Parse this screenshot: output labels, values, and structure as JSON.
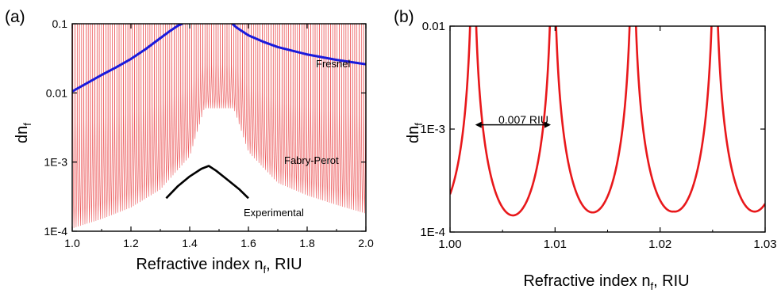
{
  "chart_data": [
    {
      "type": "line",
      "panel_label": "(a)",
      "xlabel": "Refractive index n",
      "xlabel_sub": "f",
      "xlabel_unit": ", RIU",
      "ylabel": "dn",
      "ylabel_sub": "f",
      "xlim": [
        1.0,
        2.0
      ],
      "ylim": [
        0.0001,
        0.1
      ],
      "y_scale": "log",
      "x_ticks": [
        1.0,
        1.2,
        1.4,
        1.6,
        1.8,
        2.0
      ],
      "x_tick_labels": [
        "1.0",
        "1.2",
        "1.4",
        "1.6",
        "1.8",
        "2.0"
      ],
      "y_ticks": [
        0.0001,
        0.001,
        0.01,
        0.1
      ],
      "y_tick_labels": [
        "1E-4",
        "1E-3",
        "0.01",
        "0.1"
      ],
      "series": [
        {
          "name": "Fresnel",
          "color": "#1a1adc",
          "x": [
            1.0,
            1.05,
            1.1,
            1.15,
            1.2,
            1.25,
            1.3,
            1.33,
            1.36,
            1.375,
            1.545,
            1.56,
            1.6,
            1.65,
            1.7,
            1.8,
            1.9,
            2.0
          ],
          "y": [
            0.0105,
            0.0138,
            0.0182,
            0.0235,
            0.031,
            0.043,
            0.062,
            0.077,
            0.094,
            0.1,
            0.1,
            0.088,
            0.068,
            0.055,
            0.046,
            0.036,
            0.03,
            0.026
          ]
        },
        {
          "name": "Fabry-Perot",
          "color": "#e8383b",
          "resonance_spacing": 0.0075,
          "x": [
            1.0,
            1.1,
            1.2,
            1.3,
            1.4,
            1.45,
            1.55,
            1.6,
            1.7,
            1.8,
            1.9,
            2.0
          ],
          "y_min": [
            0.00011,
            0.00015,
            0.00022,
            0.0004,
            0.0012,
            0.006,
            0.006,
            0.0014,
            0.0005,
            0.00033,
            0.00024,
            0.00018
          ]
        },
        {
          "name": "Experimental",
          "color": "#000000",
          "x": [
            1.32,
            1.36,
            1.4,
            1.44,
            1.465,
            1.49,
            1.53,
            1.57,
            1.6
          ],
          "y": [
            0.0003,
            0.00045,
            0.00062,
            0.0008,
            0.00088,
            0.00075,
            0.00055,
            0.0004,
            0.0003
          ]
        }
      ]
    },
    {
      "type": "line",
      "panel_label": "(b)",
      "xlabel": "Refractive index n",
      "xlabel_sub": "f",
      "xlabel_unit": ", RIU",
      "ylabel": "dn",
      "ylabel_sub": "f",
      "xlim": [
        1.0,
        1.03
      ],
      "ylim": [
        0.0001,
        0.01
      ],
      "y_scale": "log",
      "x_ticks": [
        1.0,
        1.01,
        1.02,
        1.03
      ],
      "x_tick_labels": [
        "1.00",
        "1.01",
        "1.02",
        "1.03"
      ],
      "y_ticks": [
        0.0001,
        0.001,
        0.01
      ],
      "y_tick_labels": [
        "1E-4",
        "1E-3",
        "0.01"
      ],
      "series": [
        {
          "color": "#e8181b",
          "resonances_x": [
            1.0022,
            1.0098,
            1.0174,
            1.0252
          ],
          "minima_x": [
            1.006,
            1.0136,
            1.0213
          ],
          "minima_y": [
            0.000145,
            0.000155,
            0.000158
          ],
          "x": [
            1.0,
            1.0022,
            1.006,
            1.0098,
            1.0136,
            1.0174,
            1.0213,
            1.0252,
            1.03
          ],
          "y": [
            0.00019,
            0.01,
            0.000145,
            0.01,
            0.000155,
            0.01,
            0.000158,
            0.01,
            0.00019
          ]
        }
      ],
      "annotation": {
        "text": "0.007 RIU",
        "x_start": 1.0024,
        "x_end": 1.0096,
        "y": 0.0011
      }
    }
  ]
}
